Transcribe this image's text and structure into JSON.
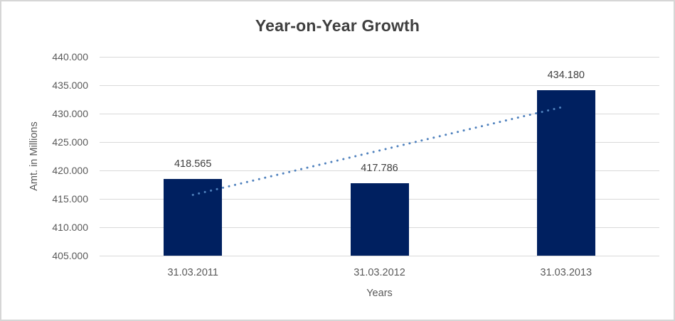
{
  "chart": {
    "title": "Year-on-Year Growth",
    "y_axis_title": "Amt. in Millions",
    "x_axis_title": "Years"
  },
  "chart_data": {
    "type": "bar",
    "title": "Year-on-Year Growth",
    "xlabel": "Years",
    "ylabel": "Amt. in Millions",
    "categories": [
      "31.03.2011",
      "31.03.2012",
      "31.03.2013"
    ],
    "values": [
      418565,
      417786,
      434180
    ],
    "value_labels": [
      "418.565",
      "417.786",
      "434.180"
    ],
    "y_ticks": [
      440000,
      435000,
      430000,
      425000,
      420000,
      415000,
      410000,
      405000
    ],
    "y_tick_labels": [
      "440.000",
      "435.000",
      "430.000",
      "425.000",
      "420.000",
      "415.000",
      "410.000",
      "405.000"
    ],
    "ylim": [
      405000,
      440000
    ],
    "y_step": 5000,
    "grid": "horizontal",
    "legend": "none",
    "bar_color": "#002060",
    "label_color": "#404040",
    "axis_text_color": "#595959",
    "gridline_color": "#d9d9d9",
    "trendline": {
      "type": "linear",
      "style": "round-dot",
      "color": "#4f81bd",
      "endpoint_values": [
        415703,
        431318
      ]
    }
  }
}
